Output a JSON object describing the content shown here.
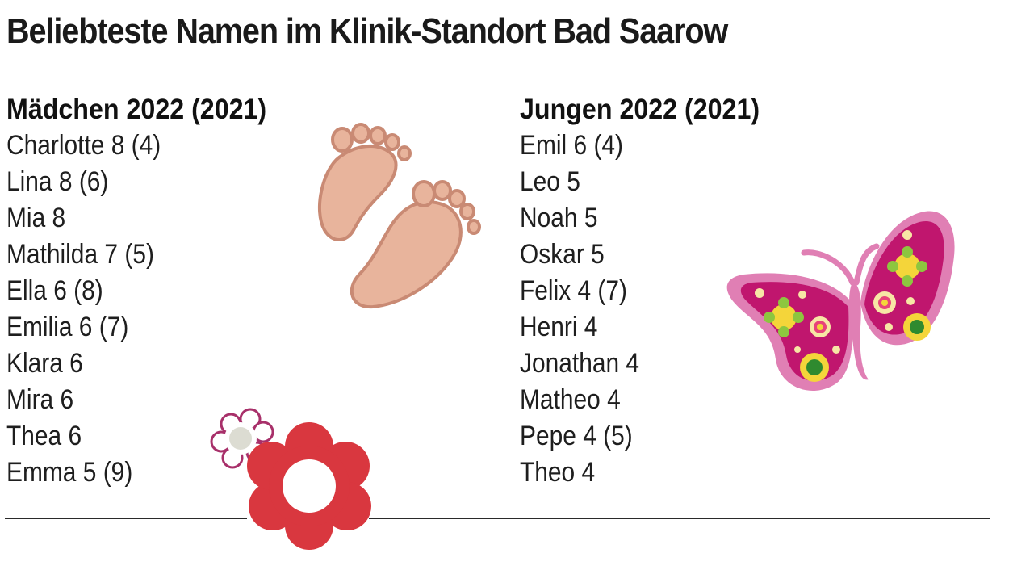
{
  "title": "Beliebteste Namen im Klinik-Standort Bad Saarow",
  "girls": {
    "heading": "Mädchen 2022 (2021)",
    "names": [
      "Charlotte 8 (4)",
      "Lina 8 (6)",
      "Mia 8",
      "Mathilda 7 (5)",
      "Ella 6 (8)",
      "Emilia 6 (7)",
      "Klara 6",
      "Mira 6",
      "Thea 6",
      "Emma 5 (9)"
    ]
  },
  "boys": {
    "heading": "Jungen 2022 (2021)",
    "names": [
      "Emil 6 (4)",
      "Leo 5",
      "Noah 5",
      "Oskar 5",
      "Felix 4 (7)",
      "Henri 4",
      "Jonathan 4",
      "Matheo 4",
      "Pepe 4 (5)",
      "Theo 4"
    ]
  },
  "illustrations": {
    "footprints": "baby-footprints-icon",
    "butterfly": "butterfly-icon",
    "flower": "flower-icon"
  },
  "colors": {
    "foot_fill": "#e8b49c",
    "foot_stroke": "#c98a74",
    "butterfly_main": "#c0166e",
    "butterfly_light": "#e07fb4",
    "flower_red": "#d9373f",
    "flower_outline": "#a8306a"
  }
}
